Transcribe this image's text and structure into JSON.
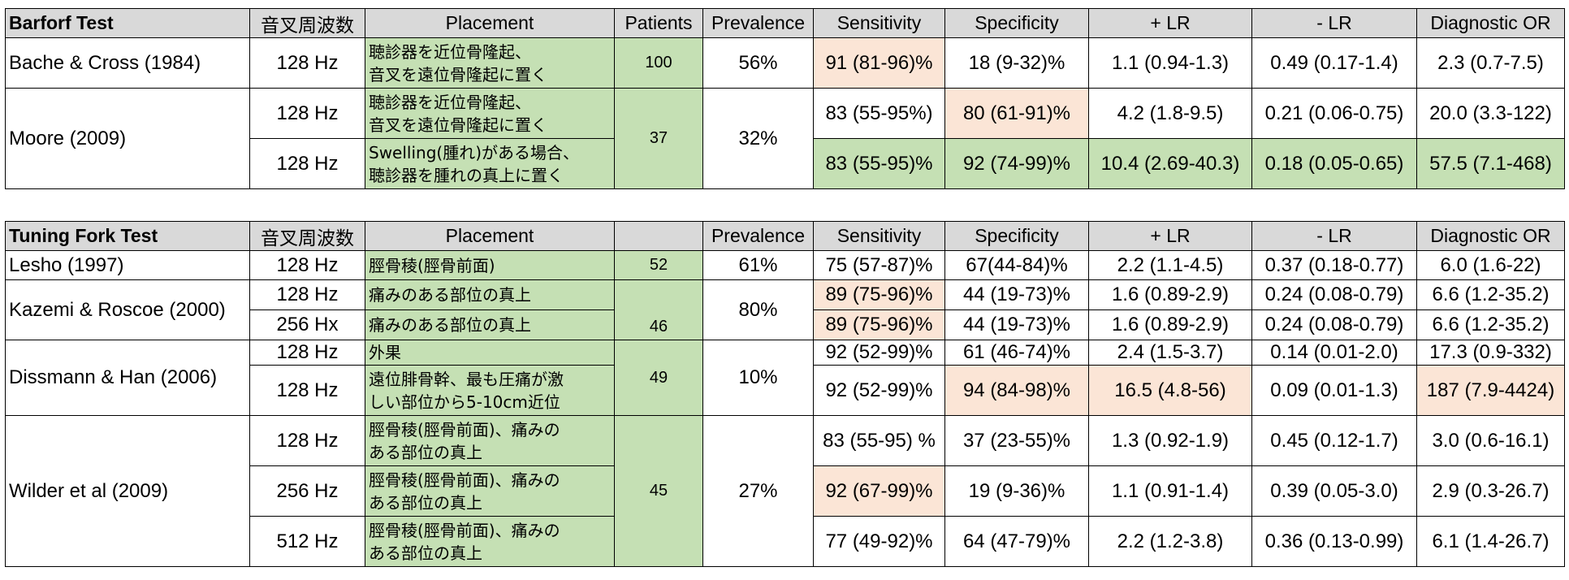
{
  "headers": {
    "freq": "音叉周波数",
    "placement": "Placement",
    "patients": "Patients",
    "prevalence": "Prevalence",
    "sensitivity": "Sensitivity",
    "specificity": "Specificity",
    "plr": "+ LR",
    "nlr": "- LR",
    "dor": "Diagnostic OR"
  },
  "barforf": {
    "title": "Barforf Test",
    "rows": [
      {
        "study": "Bache & Cross (1984)",
        "freq": "128 Hz",
        "placement_l1": "聴診器を近位骨隆起、",
        "placement_l2": "音叉を遠位骨隆起に置く",
        "patients": "100",
        "prevalence": "56%",
        "sens": "91 (81-96)%",
        "spec": "18 (9-32)%",
        "plr": "1.1 (0.94-1.3)",
        "nlr": "0.49 (0.17-1.4)",
        "dor": "2.3 (0.7-7.5)"
      },
      {
        "study": "Moore (2009)",
        "freq": "128 Hz",
        "placement_l1": "聴診器を近位骨隆起、",
        "placement_l2": "音叉を遠位骨隆起に置く",
        "patients": "37",
        "prevalence": "32%",
        "sens": "83 (55-95%)",
        "spec": "80 (61-91)%",
        "plr": "4.2 (1.8-9.5)",
        "nlr": "0.21 (0.06-0.75)",
        "dor": "20.0 (3.3-122)"
      },
      {
        "freq": "128 Hz",
        "placement_l1": "Swelling(腫れ)がある場合、",
        "placement_l2": "聴診器を腫れの真上に置く",
        "sens": "83 (55-95)%",
        "spec": "92 (74-99)%",
        "plr": "10.4 (2.69-40.3)",
        "nlr": "0.18 (0.05-0.65)",
        "dor": "57.5 (7.1-468)"
      }
    ]
  },
  "tuning": {
    "title": "Tuning Fork Test",
    "lesho": {
      "study": "Lesho (1997)",
      "freq": "128 Hz",
      "placement": "脛骨稜(脛骨前面)",
      "patients": "52",
      "prevalence": "61%",
      "sens": "75 (57-87)%",
      "spec": "67(44-84)%",
      "plr": "2.2 (1.1-4.5)",
      "nlr": "0.37 (0.18-0.77)",
      "dor": "6.0 (1.6-22)"
    },
    "kazemi": {
      "study": "Kazemi & Roscoe (2000)",
      "patients": "46",
      "prevalence": "80%",
      "rows": [
        {
          "freq": "128 Hz",
          "placement": "痛みのある部位の真上",
          "sens": "89 (75-96)%",
          "spec": "44 (19-73)%",
          "plr": "1.6 (0.89-2.9)",
          "nlr": "0.24 (0.08-0.79)",
          "dor": "6.6 (1.2-35.2)"
        },
        {
          "freq": "256 Hx",
          "placement": "痛みのある部位の真上",
          "sens": "89 (75-96)%",
          "spec": "44 (19-73)%",
          "plr": "1.6 (0.89-2.9)",
          "nlr": "0.24 (0.08-0.79)",
          "dor": "6.6 (1.2-35.2)"
        }
      ]
    },
    "dissmann": {
      "study": "Dissmann & Han (2006)",
      "patients": "49",
      "prevalence": "10%",
      "rows": [
        {
          "freq": "128 Hz",
          "placement_l1": "外果",
          "sens": "92 (52-99)%",
          "spec": "61 (46-74)%",
          "plr": "2.4 (1.5-3.7)",
          "nlr": "0.14 (0.01-2.0)",
          "dor": "17.3 (0.9-332)"
        },
        {
          "freq": "128 Hz",
          "placement_l1": "遠位腓骨幹、最も圧痛が激",
          "placement_l2": "しい部位から5-10cm近位",
          "sens": "92 (52-99)%",
          "spec": "94 (84-98)%",
          "plr": "16.5 (4.8-56)",
          "nlr": "0.09 (0.01-1.3)",
          "dor": "187 (7.9-4424)"
        }
      ]
    },
    "wilder": {
      "study": "Wilder et al (2009)",
      "patients": "45",
      "prevalence": "27%",
      "rows": [
        {
          "freq": "128 Hz",
          "placement_l1": "脛骨稜(脛骨前面)、痛みの",
          "placement_l2": "ある部位の真上",
          "sens": "83 (55-95) %",
          "spec": "37 (23-55)%",
          "plr": "1.3 (0.92-1.9)",
          "nlr": "0.45 (0.12-1.7)",
          "dor": "3.0 (0.6-16.1)"
        },
        {
          "freq": "256 Hz",
          "placement_l1": "脛骨稜(脛骨前面)、痛みの",
          "placement_l2": "ある部位の真上",
          "sens": "92 (67-99)%",
          "spec": "19 (9-36)%",
          "plr": "1.1 (0.91-1.4)",
          "nlr": "0.39 (0.05-3.0)",
          "dor": "2.9 (0.3-26.7)"
        },
        {
          "freq": "512 Hz",
          "placement_l1": "脛骨稜(脛骨前面)、痛みの",
          "placement_l2": "ある部位の真上",
          "sens": "77 (49-92)%",
          "spec": "64 (47-79)%",
          "plr": "2.2 (1.2-3.8)",
          "nlr": "0.36 (0.13-0.99)",
          "dor": "6.1 (1.4-26.7)"
        }
      ]
    }
  },
  "colors": {
    "header_gray": "#d9d9d9",
    "green": "#c5e0b4",
    "orange": "#fbe5d6"
  }
}
